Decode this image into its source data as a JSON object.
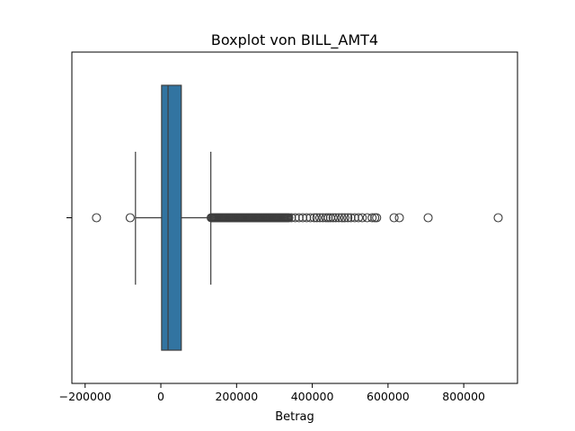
{
  "chart_data": {
    "type": "box",
    "title": "Boxplot von BILL_AMT4",
    "xlabel": "Betrag",
    "ylabel": "",
    "xlim": [
      -235000,
      942000
    ],
    "xticks": [
      -200000,
      0,
      200000,
      400000,
      600000,
      800000
    ],
    "xtick_labels": [
      "−200000",
      "0",
      "200000",
      "400000",
      "600000",
      "800000"
    ],
    "grid": false,
    "legend": "none",
    "colors": {
      "box": "#3274a1",
      "line": "#3d3d3d"
    },
    "box": {
      "whisker_low": -67000,
      "q1": 2000,
      "median": 19000,
      "q3": 54000,
      "whisker_high": 132000
    },
    "outliers_low": [
      -170000,
      -81000
    ],
    "outliers_high_dense_range": [
      133000,
      340000
    ],
    "outliers_high": [
      345000,
      355000,
      365000,
      375000,
      385000,
      395000,
      405000,
      412000,
      420000,
      428000,
      436000,
      442000,
      448000,
      455000,
      462000,
      470000,
      478000,
      486000,
      494000,
      502000,
      512000,
      522000,
      532000,
      545000,
      558000,
      565000,
      570000,
      616000,
      630000,
      706000,
      891000
    ]
  }
}
